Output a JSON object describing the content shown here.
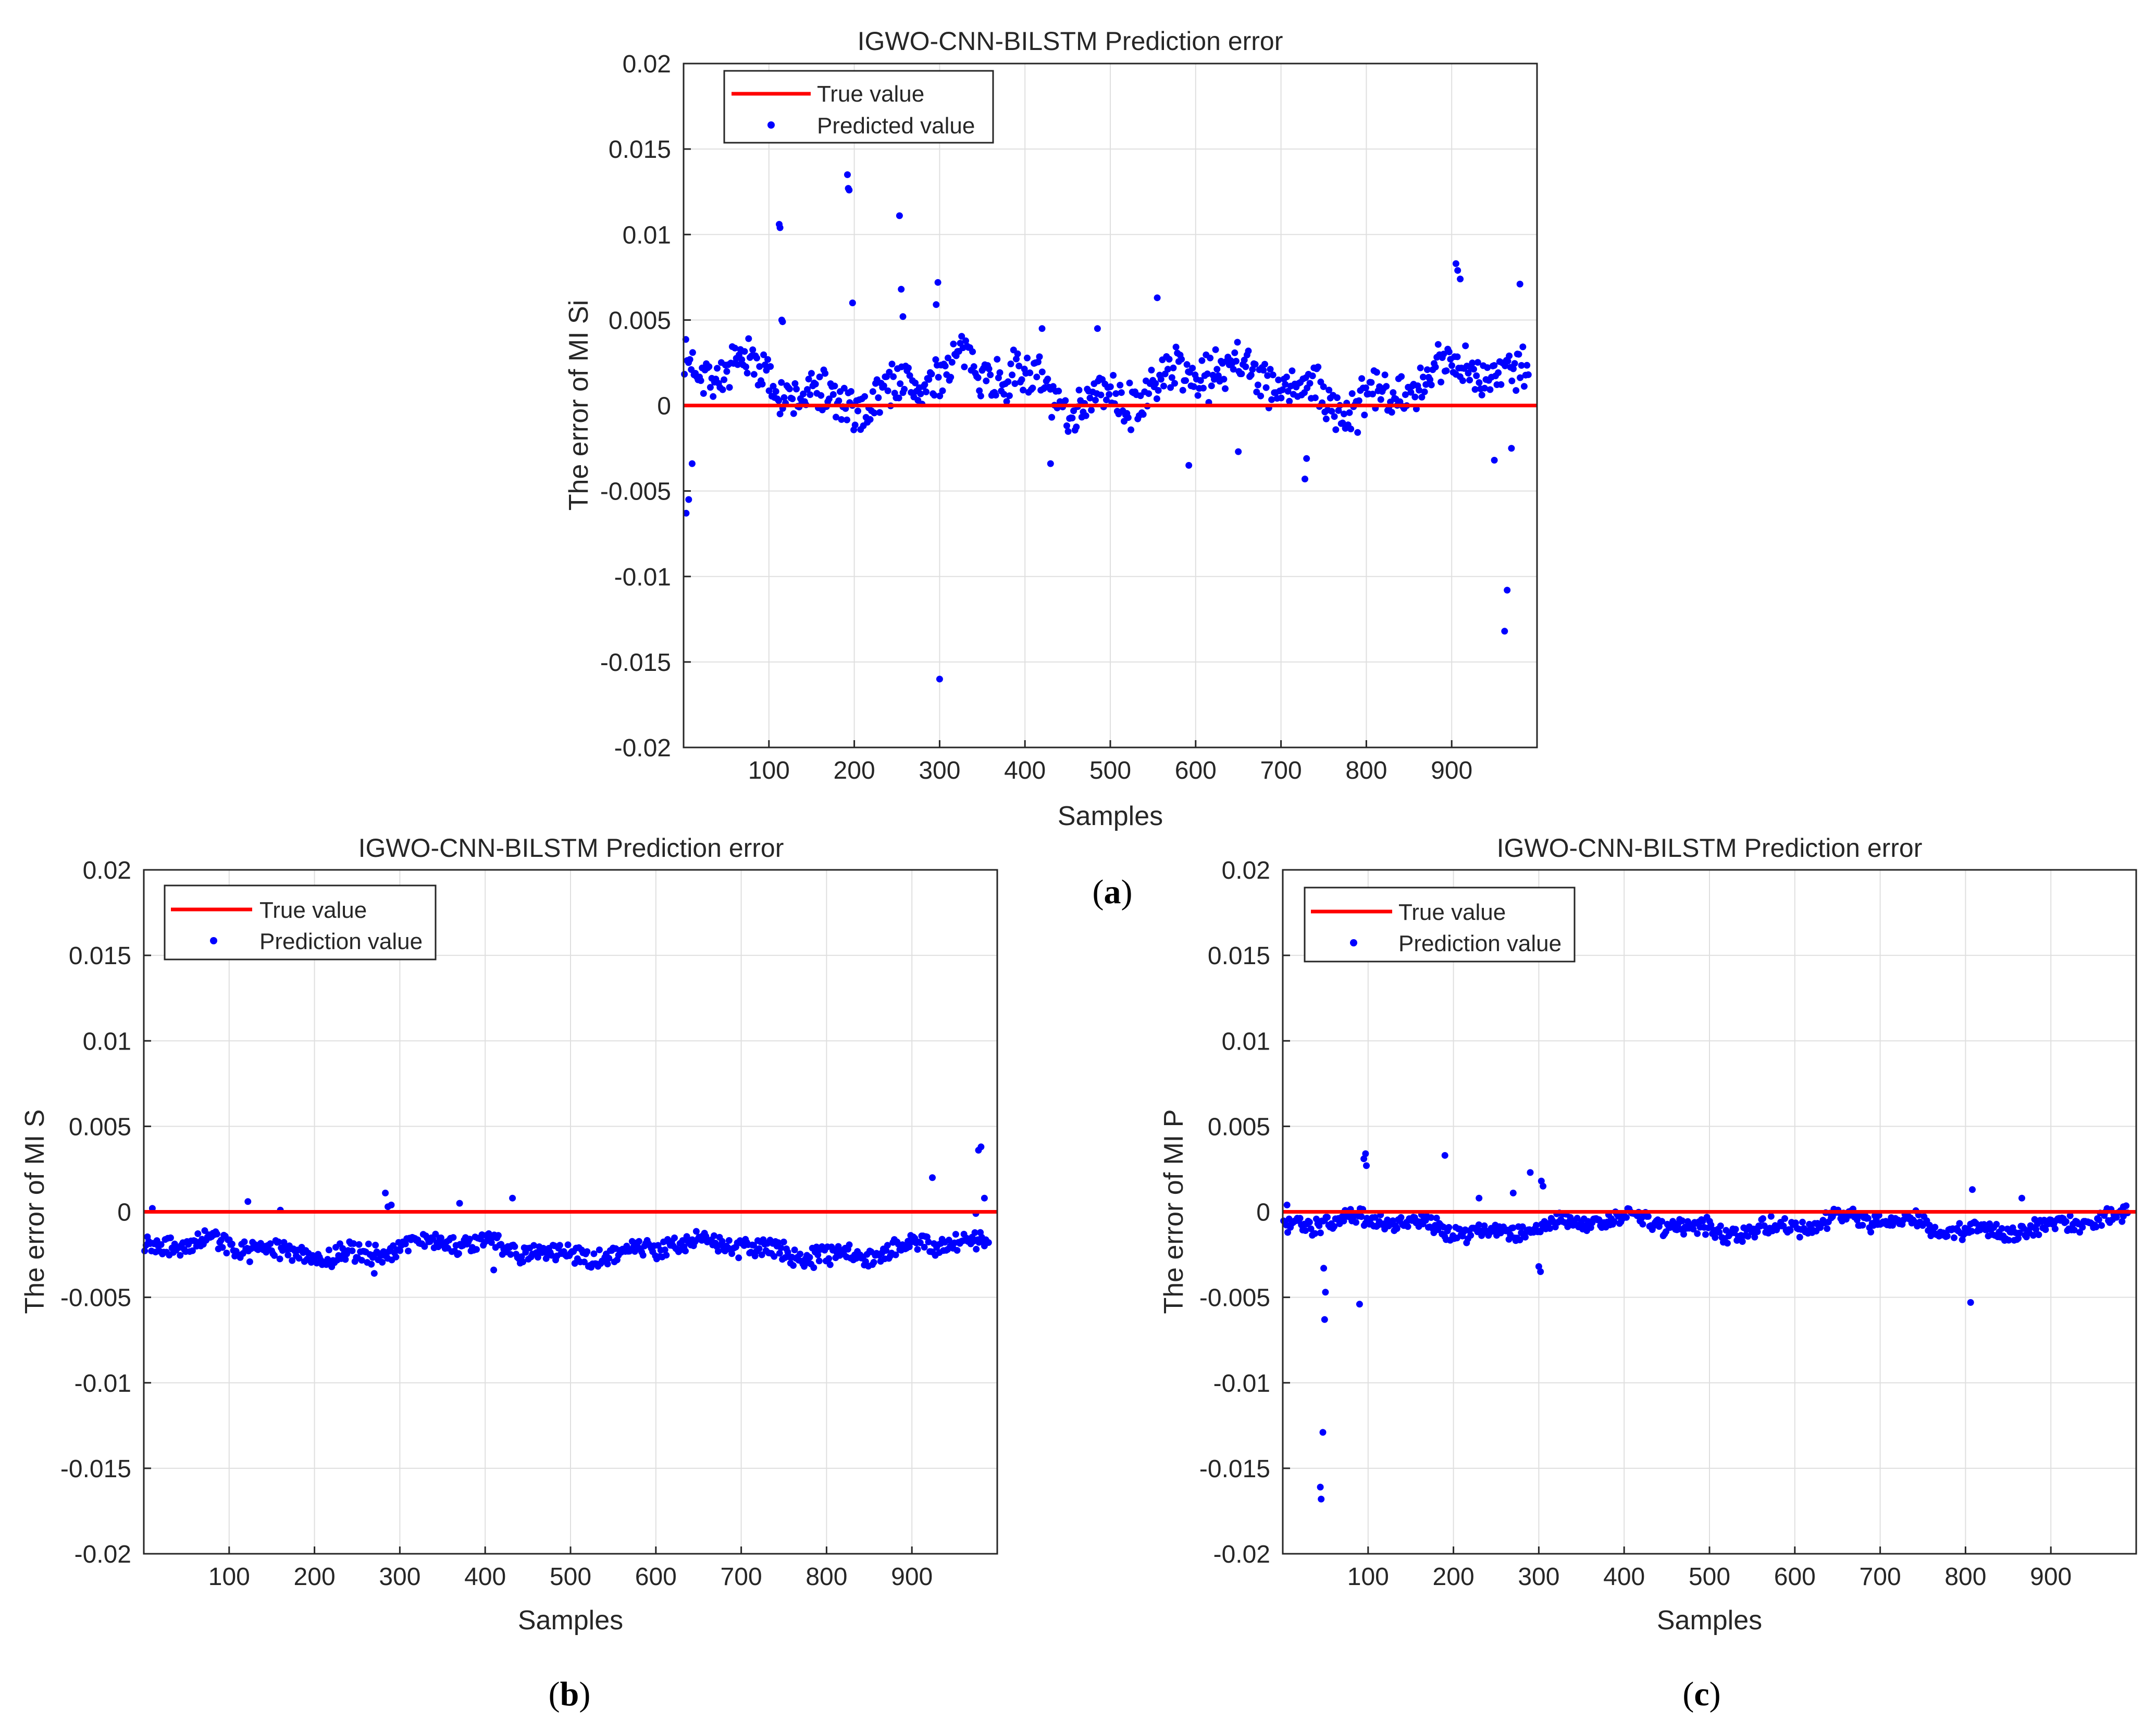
{
  "figure": {
    "captions": [
      {
        "pre": "(",
        "letter": "a",
        "post": ")"
      },
      {
        "pre": "(",
        "letter": "b",
        "post": ")"
      },
      {
        "pre": "(",
        "letter": "c",
        "post": ")"
      }
    ]
  },
  "colors": {
    "true_line": "#ff0000",
    "points": "#0000ff",
    "grid": "#dfdfdf",
    "axes": "#262626"
  },
  "chart_data": [
    {
      "type": "scatter",
      "title": "IGWO-CNN-BILSTM Prediction error",
      "xlabel": "Samples",
      "ylabel": "The error of MI Si",
      "xlim": [
        0,
        1000
      ],
      "ylim": [
        -0.02,
        0.02
      ],
      "xticks": [
        100,
        200,
        300,
        400,
        500,
        600,
        700,
        800,
        900
      ],
      "xtick_labels": [
        "100",
        "200",
        "300",
        "400",
        "500",
        "600",
        "700",
        "800",
        "900"
      ],
      "yticks": [
        -0.02,
        -0.015,
        -0.01,
        -0.005,
        0,
        0.005,
        0.01,
        0.015,
        0.02
      ],
      "ytick_labels": [
        "-0.02",
        "-0.015",
        "-0.01",
        "-0.005",
        "0",
        "0.005",
        "0.01",
        "0.015",
        "0.02"
      ],
      "legend": [
        "True value",
        "Predicted value"
      ],
      "legend_position": "top-left",
      "grid": true,
      "true_value": 0,
      "noise": {
        "base": 0.0012,
        "amp": 0.0011,
        "spread": 0.0016,
        "seed": 7
      },
      "outliers": [
        {
          "x": 3,
          "y": -0.0063
        },
        {
          "x": 6,
          "y": -0.0055
        },
        {
          "x": 10,
          "y": -0.0034
        },
        {
          "x": 112,
          "y": 0.0106
        },
        {
          "x": 113,
          "y": 0.0104
        },
        {
          "x": 115,
          "y": 0.005
        },
        {
          "x": 116,
          "y": 0.0049
        },
        {
          "x": 192,
          "y": 0.0135
        },
        {
          "x": 193,
          "y": 0.0127
        },
        {
          "x": 194,
          "y": 0.0126
        },
        {
          "x": 198,
          "y": 0.006
        },
        {
          "x": 253,
          "y": 0.0111
        },
        {
          "x": 255,
          "y": 0.0068
        },
        {
          "x": 257,
          "y": 0.0052
        },
        {
          "x": 298,
          "y": 0.0072
        },
        {
          "x": 296,
          "y": 0.0059
        },
        {
          "x": 300,
          "y": -0.016
        },
        {
          "x": 555,
          "y": 0.0063
        },
        {
          "x": 728,
          "y": -0.0043
        },
        {
          "x": 730,
          "y": -0.0031
        },
        {
          "x": 905,
          "y": 0.0083
        },
        {
          "x": 907,
          "y": 0.0079
        },
        {
          "x": 910,
          "y": 0.0074
        },
        {
          "x": 962,
          "y": -0.0132
        },
        {
          "x": 965,
          "y": -0.0108
        },
        {
          "x": 980,
          "y": 0.0071
        },
        {
          "x": 950,
          "y": -0.0032
        },
        {
          "x": 970,
          "y": -0.0025
        },
        {
          "x": 420,
          "y": 0.0045
        },
        {
          "x": 485,
          "y": 0.0045
        },
        {
          "x": 430,
          "y": -0.0034
        },
        {
          "x": 592,
          "y": -0.0035
        },
        {
          "x": 650,
          "y": -0.0027
        }
      ]
    },
    {
      "type": "scatter",
      "title": "IGWO-CNN-BILSTM Prediction error",
      "xlabel": "Samples",
      "ylabel": "The error of MI S",
      "xlim": [
        0,
        1000
      ],
      "ylim": [
        -0.02,
        0.02
      ],
      "xticks": [
        100,
        200,
        300,
        400,
        500,
        600,
        700,
        800,
        900
      ],
      "xtick_labels": [
        "100",
        "200",
        "300",
        "400",
        "500",
        "600",
        "700",
        "800",
        "900"
      ],
      "yticks": [
        -0.02,
        -0.015,
        -0.01,
        -0.005,
        0,
        0.005,
        0.01,
        0.015,
        0.02
      ],
      "ytick_labels": [
        "-0.02",
        "-0.015",
        "-0.01",
        "-0.005",
        "0",
        "0.005",
        "0.01",
        "0.015",
        "0.02"
      ],
      "legend": [
        "True value",
        "Prediction value"
      ],
      "legend_position": "top-left",
      "grid": true,
      "true_value": 0,
      "noise": {
        "base": -0.0022,
        "amp": 0.0004,
        "spread": 0.0007,
        "seed": 19
      },
      "outliers": [
        {
          "x": 122,
          "y": 0.0006
        },
        {
          "x": 283,
          "y": 0.0011
        },
        {
          "x": 286,
          "y": 0.0003
        },
        {
          "x": 290,
          "y": 0.0004
        },
        {
          "x": 370,
          "y": 0.0005
        },
        {
          "x": 432,
          "y": 0.0008
        },
        {
          "x": 924,
          "y": 0.002
        },
        {
          "x": 978,
          "y": 0.0036
        },
        {
          "x": 981,
          "y": 0.0038
        },
        {
          "x": 985,
          "y": 0.0008
        },
        {
          "x": 975,
          "y": -0.0001
        },
        {
          "x": 160,
          "y": 0.0001
        },
        {
          "x": 10,
          "y": 0.0002
        },
        {
          "x": 270,
          "y": -0.0036
        },
        {
          "x": 410,
          "y": -0.0034
        }
      ]
    },
    {
      "type": "scatter",
      "title": "IGWO-CNN-BILSTM Prediction error",
      "xlabel": "Samples",
      "ylabel": "The error of MI P",
      "xlim": [
        0,
        1000
      ],
      "ylim": [
        -0.02,
        0.02
      ],
      "xticks": [
        100,
        200,
        300,
        400,
        500,
        600,
        700,
        800,
        900
      ],
      "xtick_labels": [
        "100",
        "200",
        "300",
        "400",
        "500",
        "600",
        "700",
        "800",
        "900"
      ],
      "yticks": [
        -0.02,
        -0.015,
        -0.01,
        -0.005,
        0,
        0.005,
        0.01,
        0.015,
        0.02
      ],
      "ytick_labels": [
        "-0.02",
        "-0.015",
        "-0.01",
        "-0.005",
        "0",
        "0.005",
        "0.01",
        "0.015",
        "0.02"
      ],
      "legend": [
        "True value",
        "Prediction value"
      ],
      "legend_position": "top-left",
      "grid": true,
      "true_value": 0,
      "noise": {
        "base": -0.0008,
        "amp": 0.0004,
        "spread": 0.0006,
        "seed": 31
      },
      "outliers": [
        {
          "x": 44,
          "y": -0.0161
        },
        {
          "x": 45,
          "y": -0.0168
        },
        {
          "x": 47,
          "y": -0.0129
        },
        {
          "x": 49,
          "y": -0.0063
        },
        {
          "x": 50,
          "y": -0.0047
        },
        {
          "x": 48,
          "y": -0.0033
        },
        {
          "x": 90,
          "y": -0.0054
        },
        {
          "x": 95,
          "y": 0.0031
        },
        {
          "x": 97,
          "y": 0.0034
        },
        {
          "x": 98,
          "y": 0.0027
        },
        {
          "x": 190,
          "y": 0.0033
        },
        {
          "x": 230,
          "y": 0.0008
        },
        {
          "x": 290,
          "y": 0.0023
        },
        {
          "x": 303,
          "y": 0.0018
        },
        {
          "x": 305,
          "y": 0.0015
        },
        {
          "x": 300,
          "y": -0.0032
        },
        {
          "x": 302,
          "y": -0.0035
        },
        {
          "x": 270,
          "y": 0.0011
        },
        {
          "x": 806,
          "y": -0.0053
        },
        {
          "x": 808,
          "y": 0.0013
        },
        {
          "x": 866,
          "y": 0.0008
        },
        {
          "x": 985,
          "y": 0.0003
        },
        {
          "x": 5,
          "y": 0.0004
        }
      ]
    }
  ]
}
